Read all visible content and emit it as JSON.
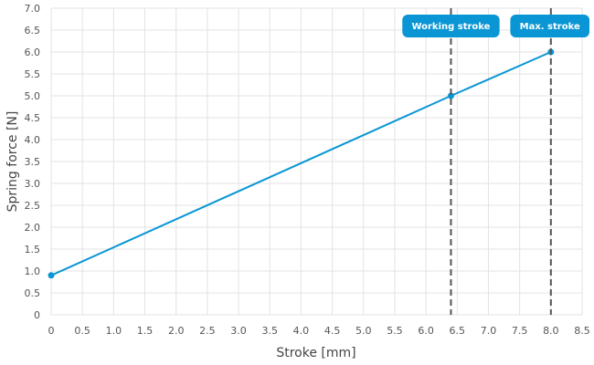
{
  "chart_data": {
    "type": "line",
    "xlabel": "Stroke [mm]",
    "ylabel": "Spring force [N]",
    "xlim": [
      0,
      8.5
    ],
    "ylim": [
      0,
      7.0
    ],
    "x_ticks": [
      "0",
      "0.5",
      "1.0",
      "1.5",
      "2.0",
      "2.5",
      "3.0",
      "3.5",
      "4.0",
      "4.5",
      "5.0",
      "5.5",
      "6.0",
      "6.5",
      "7.0",
      "7.5",
      "8.0",
      "8.5"
    ],
    "y_ticks": [
      "0",
      "0.5",
      "1.0",
      "1.5",
      "2.0",
      "2.5",
      "3.0",
      "3.5",
      "4.0",
      "4.5",
      "5.0",
      "5.5",
      "6.0",
      "6.5",
      "7.0"
    ],
    "grid": true,
    "series": [
      {
        "color": "#0a96d4",
        "points": [
          {
            "x": 0,
            "y": 0.9
          },
          {
            "x": 6.4,
            "y": 5.0
          },
          {
            "x": 8.0,
            "y": 6.0
          }
        ]
      }
    ],
    "vertical_markers": [
      {
        "x": 6.4,
        "label": "Working stroke"
      },
      {
        "x": 8.0,
        "label": "Max. stroke"
      }
    ],
    "marker_label_color": "#0a96d4",
    "marker_line_color": "#555555"
  }
}
